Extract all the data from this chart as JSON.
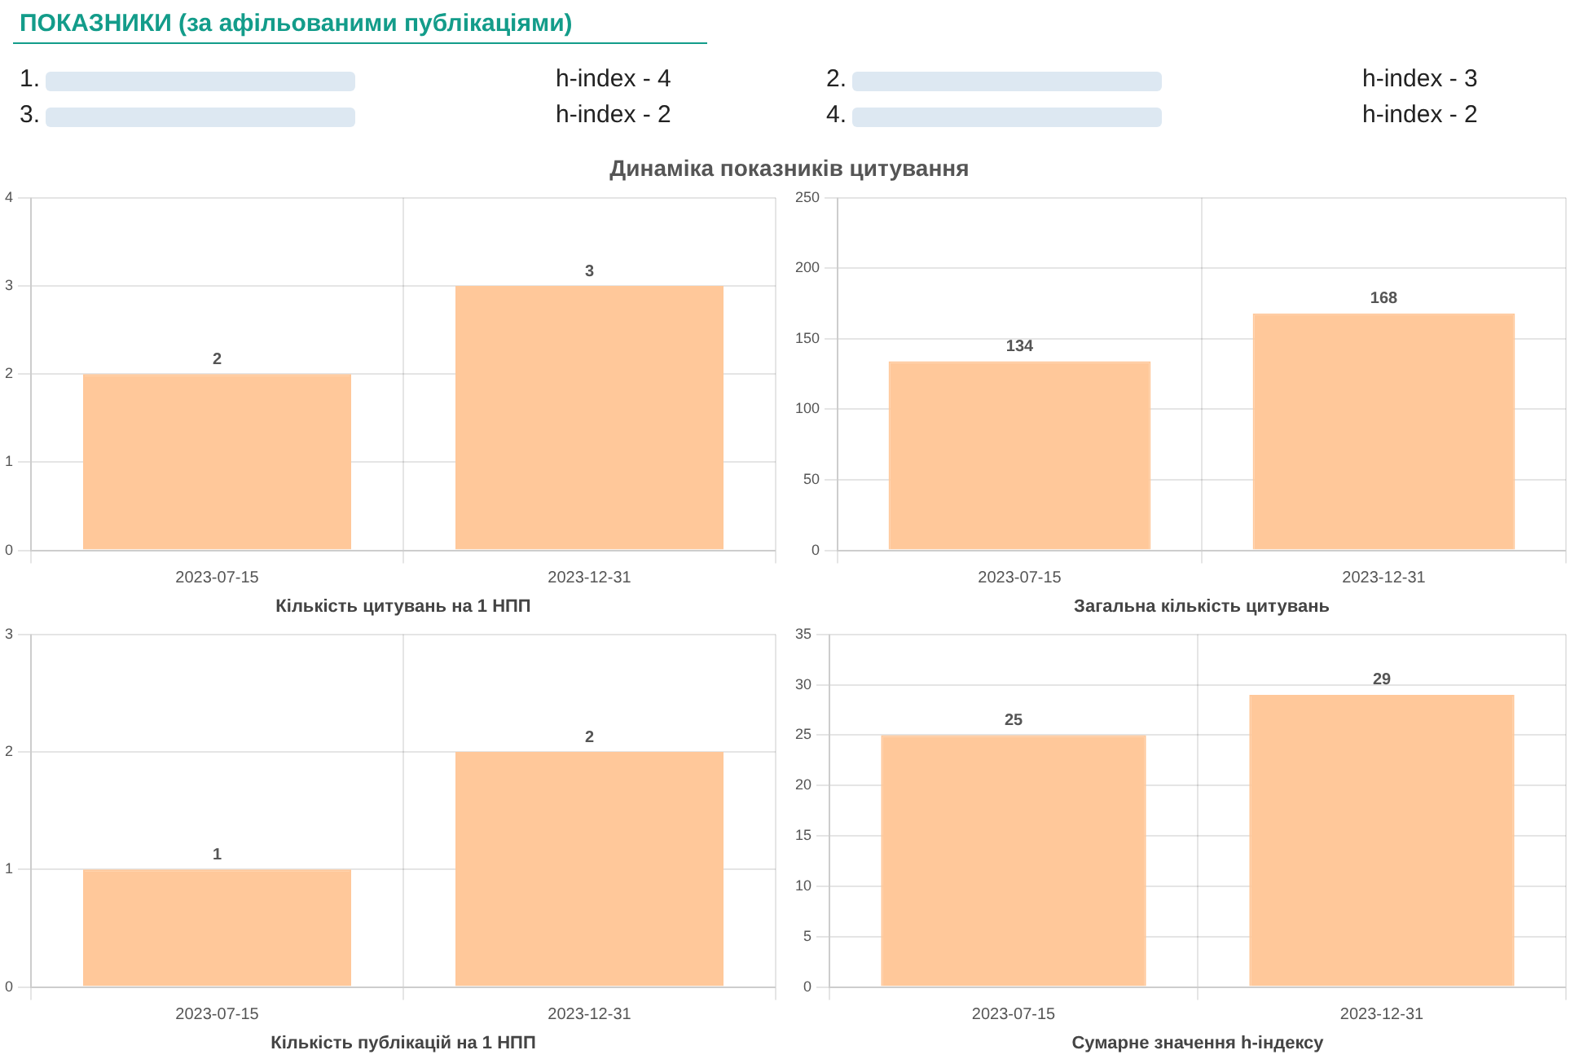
{
  "chart_data": [
    {
      "type": "other",
      "title": "ПОКАЗНИКИ (за афільованими публікаціями)",
      "subtitle": "Динаміка показників цитування",
      "annotations": [
        "1.",
        "h-index - 4",
        "2.",
        "h-index - 3",
        "3.",
        "h-index - 2",
        "4.",
        "h-index - 2"
      ]
    },
    {
      "type": "bar",
      "categories": [
        "2023-07-15",
        "2023-12-31"
      ],
      "values": [
        2,
        3
      ],
      "color": "#ffc89a",
      "xlabel": "Кількість цитувань на 1 НПП",
      "ylim": [
        0,
        4
      ],
      "yticks": [
        0,
        1,
        2,
        3,
        4
      ],
      "grid": true,
      "data_labels": true
    },
    {
      "type": "bar",
      "categories": [
        "2023-07-15",
        "2023-12-31"
      ],
      "values": [
        134,
        168
      ],
      "color": "#ffc89a",
      "xlabel": "Загальна кількість цитувань",
      "ylim": [
        0,
        250
      ],
      "yticks": [
        0,
        50,
        100,
        150,
        200,
        250
      ],
      "grid": true,
      "data_labels": true
    },
    {
      "type": "bar",
      "categories": [
        "2023-07-15",
        "2023-12-31"
      ],
      "values": [
        1,
        2
      ],
      "color": "#ffc89a",
      "xlabel": "Кількість публікацій на 1 НПП",
      "ylim": [
        0,
        3
      ],
      "yticks": [
        0,
        1,
        2,
        3
      ],
      "grid": true,
      "data_labels": true
    },
    {
      "type": "bar",
      "categories": [
        "2023-07-15",
        "2023-12-31"
      ],
      "values": [
        25,
        29
      ],
      "color": "#ffc89a",
      "xlabel": "Сумарне значення h-індексу",
      "ylim": [
        0,
        35
      ],
      "yticks": [
        0,
        5,
        10,
        15,
        20,
        25,
        30,
        35
      ],
      "grid": true,
      "data_labels": true
    }
  ]
}
